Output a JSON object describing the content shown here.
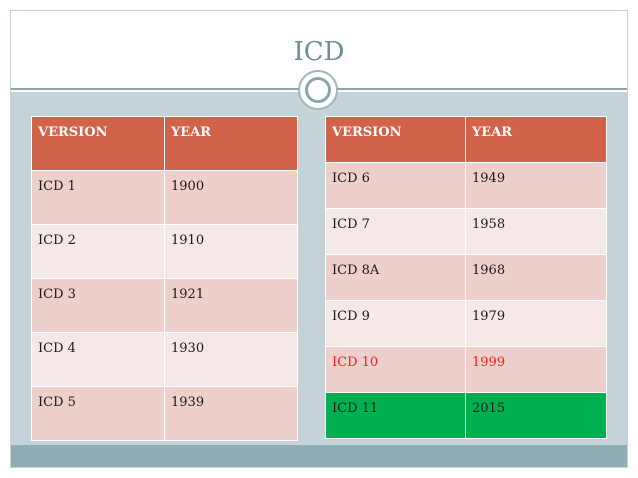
{
  "slide": {
    "title": "ICD"
  },
  "left_table": {
    "headers": [
      "VERSION",
      "YEAR"
    ],
    "rows": [
      {
        "version": "ICD 1",
        "year": "1900"
      },
      {
        "version": "ICD 2",
        "year": "1910"
      },
      {
        "version": "ICD 3",
        "year": "1921"
      },
      {
        "version": "ICD 4",
        "year": "1930"
      },
      {
        "version": "ICD 5",
        "year": "1939"
      }
    ]
  },
  "right_table": {
    "headers": [
      "VERSION",
      "YEAR"
    ],
    "rows": [
      {
        "version": "ICD 6",
        "year": "1949"
      },
      {
        "version": "ICD 7",
        "year": "1958"
      },
      {
        "version": "ICD 8A",
        "year": "1968"
      },
      {
        "version": "ICD 9",
        "year": "1979"
      },
      {
        "version": "ICD 10",
        "year": "1999"
      },
      {
        "version": "ICD 11",
        "year": "2015"
      }
    ]
  },
  "colors": {
    "header": "#d0634a",
    "row_dark": "#edd0cb",
    "row_light": "#f6e8e6",
    "highlight_red_text": "#e8231c",
    "highlight_green_fill": "#00b050",
    "title": "#6a8f98"
  }
}
